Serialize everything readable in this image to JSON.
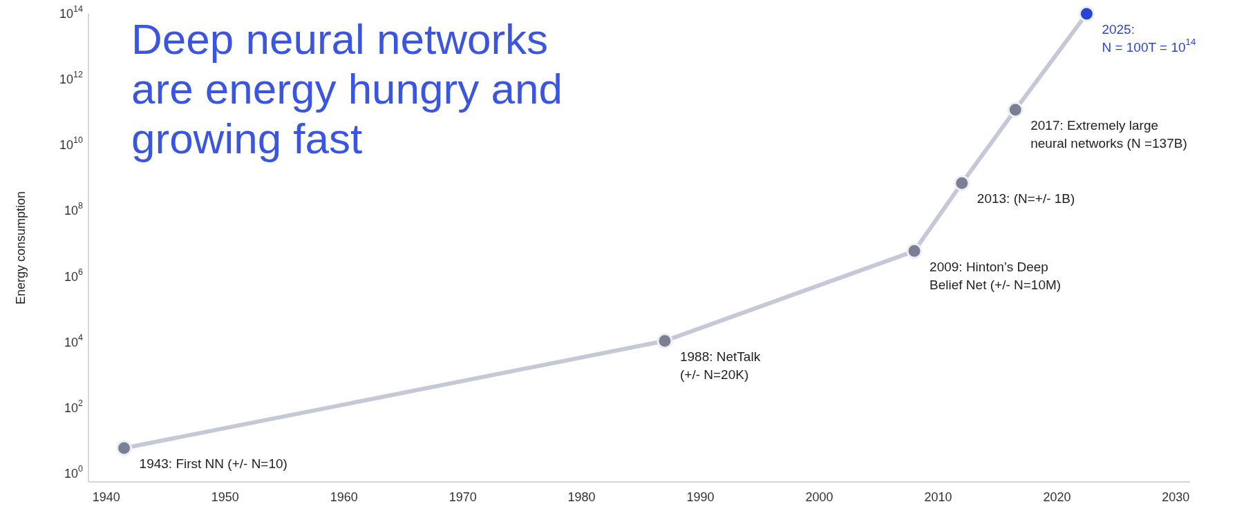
{
  "chart_data": {
    "type": "line",
    "title": "Deep neural networks are energy hungry and growing fast",
    "ylabel": "Energy consumption",
    "x": [
      1941.5,
      1987,
      2008,
      2012,
      2016.5,
      2022.5
    ],
    "series": [
      {
        "color": "#c5c8d6",
        "colors": [
          "#7b7f96",
          "#7b7f96",
          "#7b7f96",
          "#7b7f96",
          "#7b7f96",
          "#2a45d4"
        ],
        "values": [
          6,
          11000,
          6000000,
          700000000,
          120000000000,
          100000000000000
        ]
      }
    ],
    "xlim": [
      1938.5,
      2031.2
    ],
    "xticks": [
      1940,
      1950,
      1960,
      1970,
      1980,
      1990,
      2000,
      2010,
      2020,
      2030
    ],
    "ylim": [
      0.56,
      100000000000000
    ],
    "log": true,
    "yticks": [
      {
        "value": 1,
        "label": "10$^{0}$"
      },
      {
        "value": 100,
        "label": "10$^{2}$"
      },
      {
        "value": 10000,
        "label": "10$^{4}$"
      },
      {
        "value": 1000000,
        "label": "10$^{6}$"
      },
      {
        "value": 100000000,
        "label": "10$^{8}$"
      },
      {
        "value": 10000000000,
        "label": "10$^{10}$"
      },
      {
        "value": 1000000000000,
        "label": "10$^{12}$"
      },
      {
        "value": 100000000000000,
        "label": "10$^{14}$"
      }
    ],
    "grid": false,
    "marker": "circle",
    "line_style": "solid",
    "annotations": [
      {
        "text": "1943: First NN (+/- N=10)",
        "x": 1941.5,
        "y": 6
      },
      {
        "text": "1988: NetTalk\n(+/- N=20K)",
        "x": 1987,
        "y": 11000
      },
      {
        "text": "2009: Hinton’s Deep\nBelief Net (+/- N=10M)",
        "x": 2008,
        "y": 6000000
      },
      {
        "text": "2013: (N=+/- 1B)",
        "x": 2012,
        "y": 700000000
      },
      {
        "text": "2017: Extremely large\nneural networks (N =137B)",
        "x": 2016.5,
        "y": 120000000000
      },
      {
        "text": "2025:\nN = 100T = 10$^{14}$",
        "x": 2022.5,
        "y": 100000000000000
      }
    ]
  }
}
